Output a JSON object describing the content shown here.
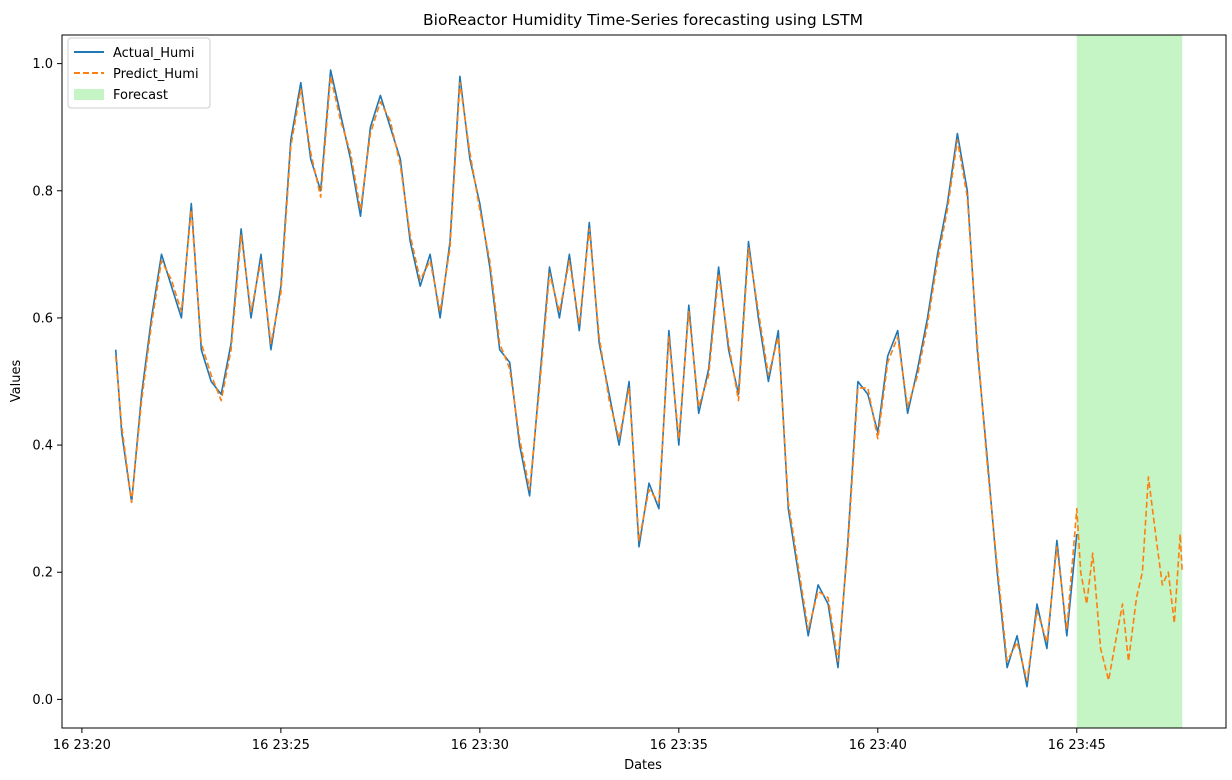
{
  "chart_data": {
    "type": "line",
    "title": "BioReactor Humidity Time-Series forecasting using LSTM",
    "xlabel": "Dates",
    "ylabel": "Values",
    "x_unit": "minute of 16 23:xx",
    "xlim": [
      19.5,
      48.75
    ],
    "ylim": [
      -0.045,
      1.045
    ],
    "x_ticks": [
      {
        "value": 20,
        "label": "16 23:20"
      },
      {
        "value": 25,
        "label": "16 23:25"
      },
      {
        "value": 30,
        "label": "16 23:30"
      },
      {
        "value": 35,
        "label": "16 23:35"
      },
      {
        "value": 40,
        "label": "16 23:40"
      },
      {
        "value": 45,
        "label": "16 23:45"
      }
    ],
    "y_ticks": [
      {
        "value": 0.0,
        "label": "0.0"
      },
      {
        "value": 0.2,
        "label": "0.2"
      },
      {
        "value": 0.4,
        "label": "0.4"
      },
      {
        "value": 0.6,
        "label": "0.6"
      },
      {
        "value": 0.8,
        "label": "0.8"
      },
      {
        "value": 1.0,
        "label": "1.0"
      }
    ],
    "grid": false,
    "legend_position": "top-left",
    "forecast_region": {
      "name": "Forecast",
      "x_start": 45.0,
      "x_end": 47.65,
      "color": "#c5f5c5"
    },
    "series": [
      {
        "name": "Actual_Humi",
        "color": "#1f77b4",
        "style": "solid",
        "x": [
          20.85,
          21.0,
          21.25,
          21.5,
          21.75,
          22.0,
          22.25,
          22.5,
          22.75,
          23.0,
          23.25,
          23.5,
          23.75,
          24.0,
          24.25,
          24.5,
          24.75,
          25.0,
          25.25,
          25.5,
          25.75,
          26.0,
          26.25,
          26.5,
          26.75,
          27.0,
          27.25,
          27.5,
          27.75,
          28.0,
          28.25,
          28.5,
          28.75,
          29.0,
          29.25,
          29.5,
          29.75,
          30.0,
          30.25,
          30.5,
          30.75,
          31.0,
          31.25,
          31.5,
          31.75,
          32.0,
          32.25,
          32.5,
          32.75,
          33.0,
          33.25,
          33.5,
          33.75,
          34.0,
          34.25,
          34.5,
          34.75,
          35.0,
          35.25,
          35.5,
          35.75,
          36.0,
          36.25,
          36.5,
          36.75,
          37.0,
          37.25,
          37.5,
          37.75,
          38.0,
          38.25,
          38.5,
          38.75,
          39.0,
          39.25,
          39.5,
          39.75,
          40.0,
          40.25,
          40.5,
          40.75,
          41.0,
          41.25,
          41.5,
          41.75,
          42.0,
          42.25,
          42.5,
          42.75,
          43.0,
          43.25,
          43.5,
          43.75,
          44.0,
          44.25,
          44.5,
          44.75,
          45.0
        ],
        "values": [
          0.55,
          0.42,
          0.31,
          0.48,
          0.6,
          0.7,
          0.65,
          0.6,
          0.78,
          0.55,
          0.5,
          0.48,
          0.56,
          0.74,
          0.6,
          0.7,
          0.55,
          0.65,
          0.88,
          0.97,
          0.85,
          0.8,
          0.99,
          0.92,
          0.85,
          0.76,
          0.9,
          0.95,
          0.9,
          0.85,
          0.72,
          0.65,
          0.7,
          0.6,
          0.72,
          0.98,
          0.85,
          0.78,
          0.68,
          0.55,
          0.53,
          0.4,
          0.32,
          0.5,
          0.68,
          0.6,
          0.7,
          0.58,
          0.75,
          0.56,
          0.48,
          0.4,
          0.5,
          0.24,
          0.34,
          0.3,
          0.58,
          0.4,
          0.62,
          0.45,
          0.52,
          0.68,
          0.55,
          0.48,
          0.72,
          0.6,
          0.5,
          0.58,
          0.3,
          0.2,
          0.1,
          0.18,
          0.15,
          0.05,
          0.25,
          0.5,
          0.48,
          0.42,
          0.54,
          0.58,
          0.45,
          0.52,
          0.6,
          0.7,
          0.78,
          0.89,
          0.8,
          0.55,
          0.38,
          0.2,
          0.05,
          0.1,
          0.02,
          0.15,
          0.08,
          0.25,
          0.1,
          0.26
        ]
      },
      {
        "name": "Predict_Humi",
        "color": "#ff7f0e",
        "style": "dashed",
        "x": [
          20.85,
          21.0,
          21.25,
          21.5,
          21.75,
          22.0,
          22.25,
          22.5,
          22.75,
          23.0,
          23.25,
          23.5,
          23.75,
          24.0,
          24.25,
          24.5,
          24.75,
          25.0,
          25.25,
          25.5,
          25.75,
          26.0,
          26.25,
          26.5,
          26.75,
          27.0,
          27.25,
          27.5,
          27.75,
          28.0,
          28.25,
          28.5,
          28.75,
          29.0,
          29.25,
          29.5,
          29.75,
          30.0,
          30.25,
          30.5,
          30.75,
          31.0,
          31.25,
          31.5,
          31.75,
          32.0,
          32.25,
          32.5,
          32.75,
          33.0,
          33.25,
          33.5,
          33.75,
          34.0,
          34.25,
          34.5,
          34.75,
          35.0,
          35.25,
          35.5,
          35.75,
          36.0,
          36.25,
          36.5,
          36.75,
          37.0,
          37.25,
          37.5,
          37.75,
          38.0,
          38.25,
          38.5,
          38.75,
          39.0,
          39.25,
          39.5,
          39.75,
          40.0,
          40.25,
          40.5,
          40.75,
          41.0,
          41.25,
          41.5,
          41.75,
          42.0,
          42.25,
          42.5,
          42.75,
          43.0,
          43.25,
          43.5,
          43.75,
          44.0,
          44.25,
          44.5,
          44.75,
          45.0,
          45.1,
          45.25,
          45.4,
          45.6,
          45.8,
          46.0,
          46.15,
          46.3,
          46.5,
          46.65,
          46.8,
          47.0,
          47.15,
          47.3,
          47.45,
          47.6,
          47.65
        ],
        "values": [
          0.54,
          0.43,
          0.31,
          0.47,
          0.59,
          0.69,
          0.66,
          0.61,
          0.77,
          0.56,
          0.51,
          0.47,
          0.55,
          0.73,
          0.61,
          0.69,
          0.56,
          0.64,
          0.87,
          0.96,
          0.86,
          0.79,
          0.98,
          0.91,
          0.86,
          0.77,
          0.89,
          0.94,
          0.91,
          0.84,
          0.73,
          0.66,
          0.69,
          0.61,
          0.71,
          0.97,
          0.86,
          0.77,
          0.69,
          0.56,
          0.52,
          0.41,
          0.33,
          0.49,
          0.67,
          0.61,
          0.69,
          0.59,
          0.74,
          0.57,
          0.47,
          0.41,
          0.49,
          0.25,
          0.33,
          0.31,
          0.57,
          0.41,
          0.61,
          0.46,
          0.51,
          0.67,
          0.56,
          0.47,
          0.71,
          0.61,
          0.51,
          0.57,
          0.31,
          0.21,
          0.11,
          0.17,
          0.16,
          0.06,
          0.24,
          0.49,
          0.49,
          0.41,
          0.53,
          0.57,
          0.46,
          0.51,
          0.59,
          0.69,
          0.77,
          0.88,
          0.79,
          0.56,
          0.37,
          0.21,
          0.06,
          0.09,
          0.03,
          0.14,
          0.09,
          0.24,
          0.11,
          0.3,
          0.2,
          0.15,
          0.23,
          0.08,
          0.03,
          0.1,
          0.15,
          0.06,
          0.16,
          0.2,
          0.35,
          0.25,
          0.18,
          0.2,
          0.12,
          0.26,
          0.2
        ]
      }
    ]
  }
}
